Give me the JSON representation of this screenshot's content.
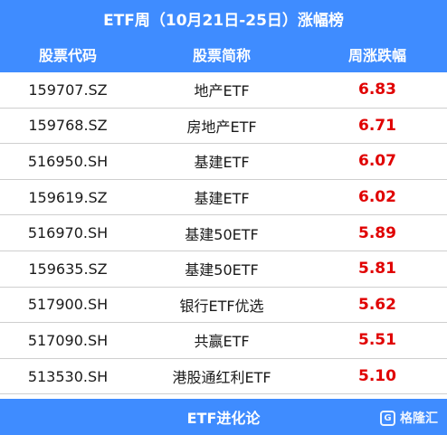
{
  "title": "ETF周（10月21日-25日）涨幅榜",
  "headers": [
    "股票代码",
    "股票简称",
    "周涨跌幅"
  ],
  "rows": [
    {
      "code": "159707.SZ",
      "name": "地产ETF",
      "change": "6.83"
    },
    {
      "code": "159768.SZ",
      "name": "房地产ETF",
      "change": "6.71"
    },
    {
      "code": "516950.SH",
      "name": "基建ETF",
      "change": "6.07"
    },
    {
      "code": "159619.SZ",
      "name": "基建ETF",
      "change": "6.02"
    },
    {
      "code": "516970.SH",
      "name": "基建50ETF",
      "change": "5.89"
    },
    {
      "code": "159635.SZ",
      "name": "基建50ETF",
      "change": "5.81"
    },
    {
      "code": "517900.SH",
      "name": "银行ETF优选",
      "change": "5.62"
    },
    {
      "code": "517090.SH",
      "name": "共赢ETF",
      "change": "5.51"
    },
    {
      "code": "513530.SH",
      "name": "港股通红利ETF",
      "change": "5.10"
    }
  ],
  "footer": "ETF进化论",
  "watermark": "格隆汇",
  "colors": {
    "accent": "#3f8cff",
    "positive": "#e00000"
  }
}
